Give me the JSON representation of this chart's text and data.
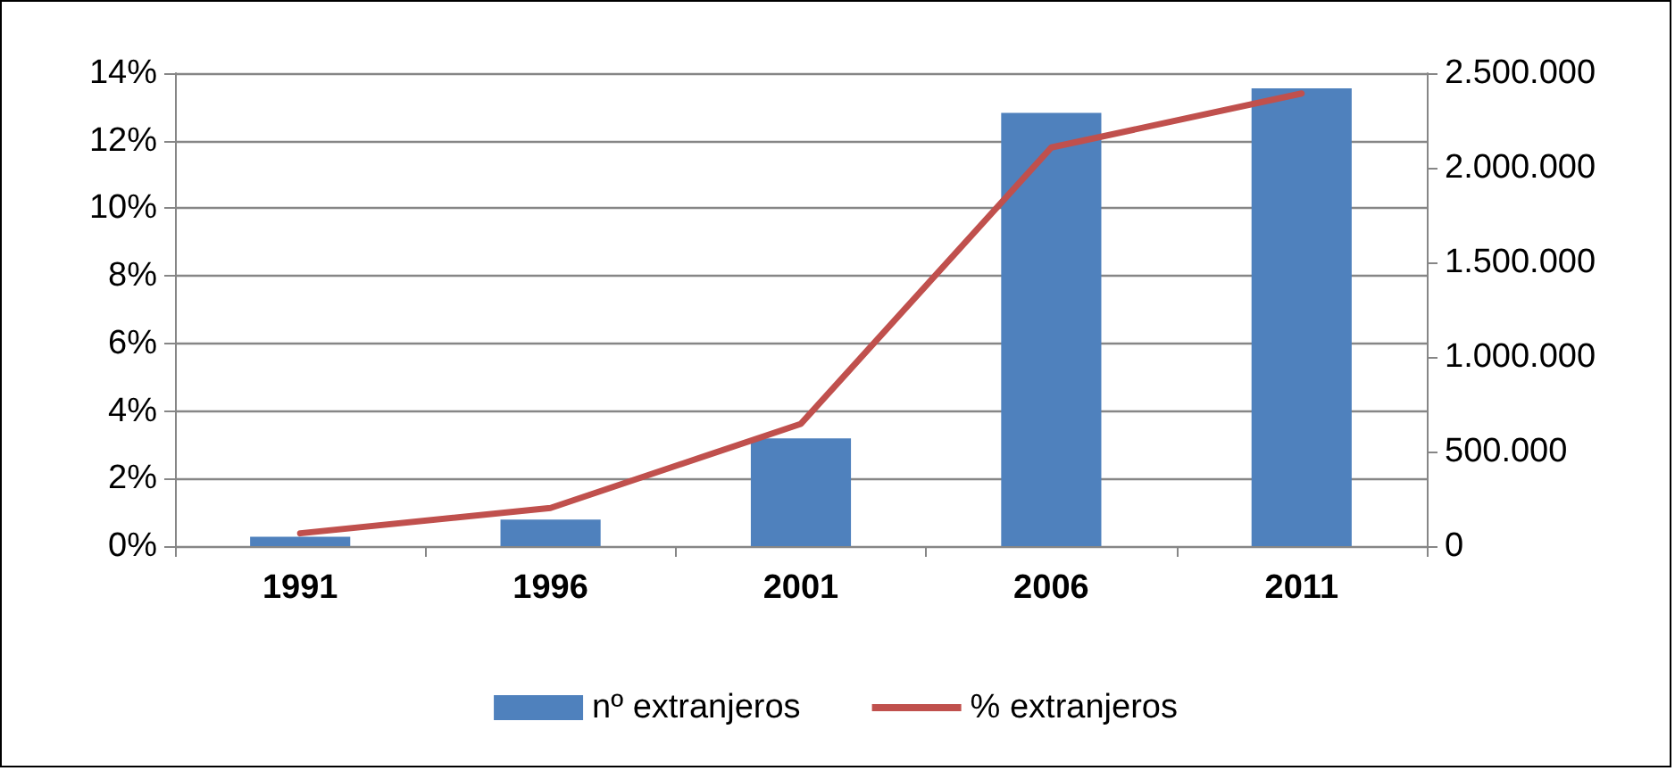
{
  "chart_data": {
    "type": "bar",
    "categories": [
      "1991",
      "1996",
      "2001",
      "2006",
      "2011"
    ],
    "series": [
      {
        "name": "nº extranjeros",
        "color": "#4f81bd",
        "axis": "y2",
        "values": [
          50000,
          140000,
          570000,
          2290000,
          2420000
        ]
      },
      {
        "name": "% extranjeros",
        "type": "line",
        "color": "#c0504d",
        "values": [
          0.38,
          1.13,
          3.62,
          11.8,
          13.4
        ]
      }
    ],
    "ylim": [
      0,
      14
    ],
    "yticks": [
      {
        "value": 0,
        "label": "0%"
      },
      {
        "value": 2,
        "label": "2%"
      },
      {
        "value": 4,
        "label": "4%"
      },
      {
        "value": 6,
        "label": "6%"
      },
      {
        "value": 8,
        "label": "8%"
      },
      {
        "value": 10,
        "label": "10%"
      },
      {
        "value": 12,
        "label": "12%"
      },
      {
        "value": 14,
        "label": "14%"
      }
    ],
    "y2lim": [
      0,
      2500000
    ],
    "y2ticks": [
      {
        "value": 0,
        "label": "0"
      },
      {
        "value": 500000,
        "label": "500.000"
      },
      {
        "value": 1000000,
        "label": "1.000.000"
      },
      {
        "value": 1500000,
        "label": "1.500.000"
      },
      {
        "value": 2000000,
        "label": "2.000.000"
      },
      {
        "value": 2500000,
        "label": "2.500.000"
      }
    ],
    "grid": "y",
    "legend": "bottom",
    "marker": "none",
    "line_style": "solid"
  }
}
